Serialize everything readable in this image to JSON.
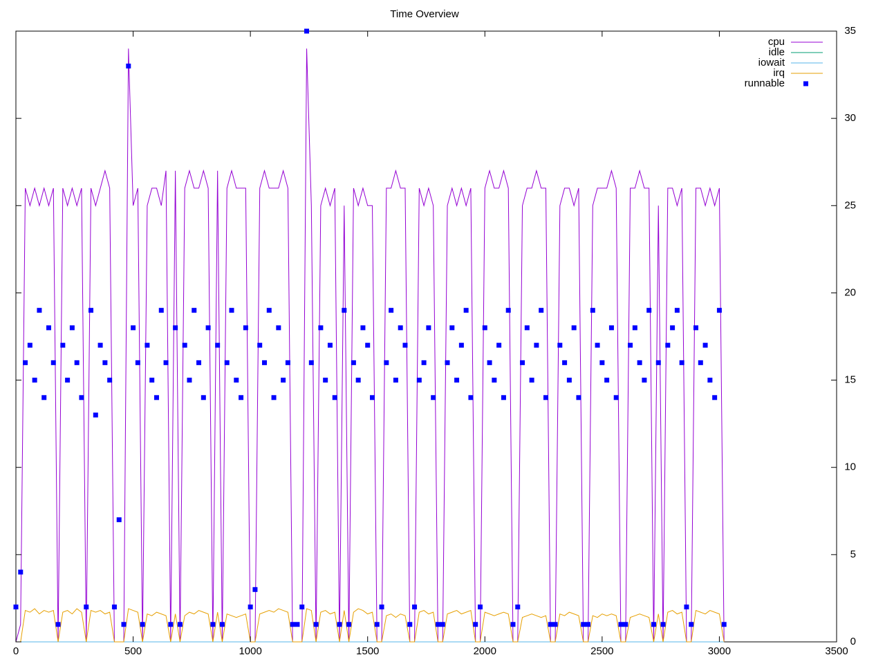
{
  "chart_data": {
    "type": "line",
    "title": "Time Overview",
    "xlim": [
      0,
      3500
    ],
    "xticks": [
      0,
      500,
      1000,
      1500,
      2000,
      2500,
      3000,
      3500
    ],
    "ylim": [
      0,
      35
    ],
    "yticks": [
      0,
      5,
      10,
      15,
      20,
      25,
      30,
      35
    ],
    "y_axis_side": "right",
    "legend": "top-right",
    "x": [
      0,
      20,
      40,
      60,
      80,
      100,
      120,
      140,
      160,
      180,
      200,
      220,
      240,
      260,
      280,
      300,
      320,
      340,
      360,
      380,
      400,
      420,
      440,
      460,
      480,
      500,
      520,
      540,
      560,
      580,
      600,
      620,
      640,
      660,
      680,
      700,
      720,
      740,
      760,
      780,
      800,
      820,
      840,
      860,
      880,
      900,
      920,
      940,
      960,
      980,
      1000,
      1020,
      1040,
      1060,
      1080,
      1100,
      1120,
      1140,
      1160,
      1180,
      1200,
      1220,
      1240,
      1260,
      1280,
      1300,
      1320,
      1340,
      1360,
      1380,
      1400,
      1420,
      1440,
      1460,
      1480,
      1500,
      1520,
      1540,
      1560,
      1580,
      1600,
      1620,
      1640,
      1660,
      1680,
      1700,
      1720,
      1740,
      1760,
      1780,
      1800,
      1820,
      1840,
      1860,
      1880,
      1900,
      1920,
      1940,
      1960,
      1980,
      2000,
      2020,
      2040,
      2060,
      2080,
      2100,
      2120,
      2140,
      2160,
      2180,
      2200,
      2220,
      2240,
      2260,
      2280,
      2300,
      2320,
      2340,
      2360,
      2380,
      2400,
      2420,
      2440,
      2460,
      2480,
      2500,
      2520,
      2540,
      2560,
      2580,
      2600,
      2620,
      2640,
      2660,
      2680,
      2700,
      2720,
      2740,
      2760,
      2780,
      2800,
      2820,
      2840,
      2860,
      2880,
      2900,
      2920,
      2940,
      2960,
      2980,
      3000,
      3020
    ],
    "series": [
      {
        "name": "cpu",
        "color": "#9400d3",
        "style": "lines",
        "values": [
          0,
          1,
          26,
          25,
          26,
          25,
          26,
          25,
          26,
          0,
          26,
          25,
          26,
          25,
          26,
          0,
          26,
          25,
          26,
          27,
          26,
          0,
          0,
          0,
          34,
          25,
          26,
          0,
          25,
          26,
          26,
          25,
          27,
          0,
          27,
          0,
          26,
          27,
          26,
          26,
          27,
          26,
          0,
          27,
          0,
          26,
          27,
          26,
          26,
          26,
          0,
          0,
          26,
          27,
          26,
          26,
          26,
          27,
          26,
          0,
          0,
          0,
          34,
          25,
          0,
          25,
          26,
          25,
          26,
          0,
          25,
          0,
          26,
          25,
          26,
          25,
          25,
          0,
          0,
          26,
          26,
          27,
          26,
          26,
          0,
          0,
          26,
          25,
          26,
          25,
          0,
          0,
          25,
          26,
          25,
          26,
          25,
          26,
          0,
          0,
          26,
          27,
          26,
          26,
          27,
          26,
          0,
          0,
          25,
          26,
          26,
          27,
          26,
          26,
          0,
          0,
          25,
          26,
          26,
          25,
          26,
          0,
          0,
          25,
          26,
          26,
          26,
          27,
          26,
          0,
          0,
          26,
          26,
          27,
          26,
          26,
          0,
          25,
          0,
          26,
          26,
          25,
          26,
          0,
          0,
          26,
          26,
          25,
          26,
          25,
          26,
          0
        ]
      },
      {
        "name": "idle",
        "color": "#009e73",
        "style": "lines",
        "values": [
          0,
          0,
          0,
          0,
          0,
          0,
          0,
          0,
          0,
          0,
          0,
          0,
          0,
          0,
          0,
          0,
          0,
          0,
          0,
          0,
          0,
          0,
          0,
          0,
          0,
          0,
          0,
          0,
          0,
          0,
          0,
          0,
          0,
          0,
          0,
          0,
          0,
          0,
          0,
          0,
          0,
          0,
          0,
          0,
          0,
          0,
          0,
          0,
          0,
          0,
          0,
          0,
          0,
          0,
          0,
          0,
          0,
          0,
          0,
          0,
          0,
          0,
          0,
          0,
          0,
          0,
          0,
          0,
          0,
          0,
          0,
          0,
          0,
          0,
          0,
          0,
          0,
          0,
          0,
          0,
          0,
          0,
          0,
          0,
          0,
          0,
          0,
          0,
          0,
          0,
          0,
          0,
          0,
          0,
          0,
          0,
          0,
          0,
          0,
          0,
          0,
          0,
          0,
          0,
          0,
          0,
          0,
          0,
          0,
          0,
          0,
          0,
          0,
          0,
          0,
          0,
          0,
          0,
          0,
          0,
          0,
          0,
          0,
          0,
          0,
          0,
          0,
          0,
          0,
          0,
          0,
          0,
          0,
          0,
          0,
          0,
          0,
          0,
          0,
          0,
          0,
          0,
          0,
          0,
          0,
          0,
          0,
          0,
          0,
          0,
          0,
          0
        ]
      },
      {
        "name": "iowait",
        "color": "#56b4e9",
        "style": "lines",
        "values": [
          0,
          0,
          0,
          0,
          0,
          0,
          0,
          0,
          0,
          0,
          0,
          0,
          0,
          0,
          0,
          0,
          0,
          0,
          0,
          0,
          0,
          0,
          0,
          0,
          0,
          0,
          0,
          0,
          0,
          0,
          0,
          0,
          0,
          0,
          0,
          0,
          0,
          0,
          0,
          0,
          0,
          0,
          0,
          0,
          0,
          0,
          0,
          0,
          0,
          0,
          0,
          0,
          0,
          0,
          0,
          0,
          0,
          0,
          0,
          0,
          0,
          0,
          0,
          0,
          0,
          0,
          0,
          0,
          0,
          0,
          0,
          0,
          0,
          0,
          0,
          0,
          0,
          0,
          0,
          0,
          0,
          0,
          0,
          0,
          0,
          0,
          0,
          0,
          0,
          0,
          0,
          0,
          0,
          0,
          0,
          0,
          0,
          0,
          0,
          0,
          0,
          0,
          0,
          0,
          0,
          0,
          0,
          0,
          0,
          0,
          0,
          0,
          0,
          0,
          0,
          0,
          0,
          0,
          0,
          0,
          0,
          0,
          0,
          0,
          0,
          0,
          0,
          0,
          0,
          0,
          0,
          0,
          0,
          0,
          0,
          0,
          0,
          0,
          0,
          0,
          0,
          0,
          0,
          0,
          0,
          0,
          0,
          0,
          0,
          0,
          0,
          0
        ]
      },
      {
        "name": "irq",
        "color": "#e69f00",
        "style": "lines",
        "values": [
          0,
          0,
          1.8,
          1.7,
          1.9,
          1.6,
          1.8,
          1.7,
          1.8,
          0,
          1.7,
          1.8,
          1.6,
          1.9,
          1.7,
          0,
          1.8,
          1.7,
          1.8,
          1.6,
          1.7,
          0,
          0,
          0,
          1.9,
          1.8,
          1.7,
          0,
          1.6,
          1.5,
          1.7,
          1.6,
          1.5,
          0,
          1.6,
          0,
          1.5,
          1.7,
          1.6,
          1.8,
          1.7,
          1.6,
          0,
          1.7,
          0,
          1.6,
          1.5,
          1.4,
          1.5,
          1.6,
          0,
          0,
          1.6,
          1.7,
          1.8,
          1.7,
          1.9,
          1.8,
          1.7,
          0,
          0,
          0,
          1.9,
          1.8,
          0,
          1.7,
          1.8,
          1.6,
          1.7,
          0,
          1.8,
          0,
          1.7,
          1.9,
          1.8,
          1.6,
          1.7,
          0,
          0,
          1.5,
          1.6,
          1.4,
          1.6,
          1.5,
          0,
          0,
          1.7,
          1.8,
          1.6,
          1.7,
          0,
          0,
          1.6,
          1.7,
          1.8,
          1.6,
          1.7,
          1.8,
          0,
          0,
          1.7,
          1.6,
          1.5,
          1.6,
          1.7,
          1.6,
          0,
          0,
          1.4,
          1.5,
          1.6,
          1.5,
          1.4,
          1.5,
          0,
          0,
          1.6,
          1.5,
          1.7,
          1.6,
          1.5,
          0,
          0,
          1.5,
          1.4,
          1.6,
          1.5,
          1.6,
          1.5,
          0,
          0,
          1.4,
          1.5,
          1.6,
          1.5,
          1.4,
          0,
          1.6,
          0,
          1.7,
          1.8,
          1.6,
          1.7,
          0,
          0,
          1.8,
          1.7,
          1.6,
          1.8,
          1.7,
          1.6,
          0
        ]
      },
      {
        "name": "runnable",
        "color": "#0000ff",
        "style": "points",
        "values": [
          2,
          4,
          16,
          17,
          15,
          19,
          14,
          18,
          16,
          1,
          17,
          15,
          18,
          16,
          14,
          2,
          19,
          13,
          17,
          16,
          15,
          2,
          7,
          1,
          33,
          18,
          16,
          1,
          17,
          15,
          14,
          19,
          16,
          1,
          18,
          1,
          17,
          15,
          19,
          16,
          14,
          18,
          1,
          17,
          1,
          16,
          19,
          15,
          14,
          18,
          2,
          3,
          17,
          16,
          19,
          14,
          18,
          15,
          16,
          1,
          1,
          2,
          35,
          16,
          1,
          18,
          15,
          17,
          14,
          1,
          19,
          1,
          16,
          15,
          18,
          17,
          14,
          1,
          2,
          16,
          19,
          15,
          18,
          17,
          1,
          2,
          15,
          16,
          18,
          14,
          1,
          1,
          16,
          18,
          15,
          17,
          19,
          14,
          1,
          2,
          18,
          16,
          15,
          17,
          14,
          19,
          1,
          2,
          16,
          18,
          15,
          17,
          19,
          14,
          1,
          1,
          17,
          16,
          15,
          18,
          14,
          1,
          1,
          19,
          17,
          16,
          15,
          18,
          14,
          1,
          1,
          17,
          18,
          16,
          15,
          19,
          1,
          16,
          1,
          17,
          18,
          19,
          16,
          2,
          1,
          18,
          16,
          17,
          15,
          14,
          19,
          1
        ]
      }
    ]
  }
}
